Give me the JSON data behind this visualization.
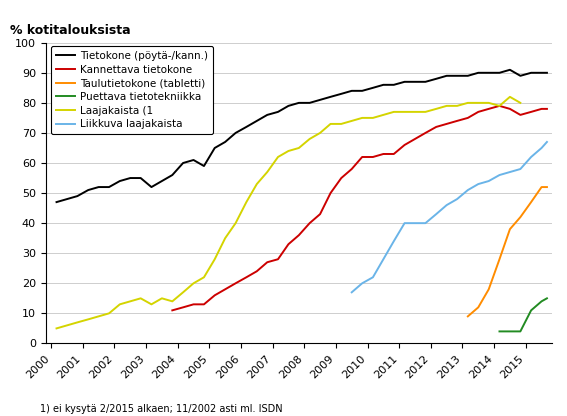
{
  "ylabel_text": "% kotitalouksista",
  "footnote": "1) ei kysytä 2/2015 alkaen; 11/2002 asti ml. ISDN",
  "ylim": [
    0,
    100
  ],
  "yticks": [
    0,
    10,
    20,
    30,
    40,
    50,
    60,
    70,
    80,
    90,
    100
  ],
  "xtick_labels": [
    "2000",
    "2001",
    "2002",
    "2003",
    "2004",
    "2005",
    "2006",
    "2007",
    "2008",
    "2009",
    "2010",
    "2011",
    "2012",
    "2013",
    "2014",
    "2015"
  ],
  "series": {
    "Tietokone (pöytä-/kann.)": {
      "color": "#000000",
      "data": [
        [
          2000.17,
          47
        ],
        [
          2000.5,
          48
        ],
        [
          2000.83,
          49
        ],
        [
          2001.17,
          51
        ],
        [
          2001.5,
          52
        ],
        [
          2001.83,
          52
        ],
        [
          2002.17,
          54
        ],
        [
          2002.5,
          55
        ],
        [
          2002.83,
          55
        ],
        [
          2003.17,
          52
        ],
        [
          2003.5,
          54
        ],
        [
          2003.83,
          56
        ],
        [
          2004.17,
          60
        ],
        [
          2004.5,
          61
        ],
        [
          2004.83,
          59
        ],
        [
          2005.17,
          65
        ],
        [
          2005.5,
          67
        ],
        [
          2005.83,
          70
        ],
        [
          2006.17,
          72
        ],
        [
          2006.5,
          74
        ],
        [
          2006.83,
          76
        ],
        [
          2007.17,
          77
        ],
        [
          2007.5,
          79
        ],
        [
          2007.83,
          80
        ],
        [
          2008.17,
          80
        ],
        [
          2008.5,
          81
        ],
        [
          2008.83,
          82
        ],
        [
          2009.17,
          83
        ],
        [
          2009.5,
          84
        ],
        [
          2009.83,
          84
        ],
        [
          2010.17,
          85
        ],
        [
          2010.5,
          86
        ],
        [
          2010.83,
          86
        ],
        [
          2011.17,
          87
        ],
        [
          2011.5,
          87
        ],
        [
          2011.83,
          87
        ],
        [
          2012.17,
          88
        ],
        [
          2012.5,
          89
        ],
        [
          2012.83,
          89
        ],
        [
          2013.17,
          89
        ],
        [
          2013.5,
          90
        ],
        [
          2013.83,
          90
        ],
        [
          2014.17,
          90
        ],
        [
          2014.5,
          91
        ],
        [
          2014.83,
          89
        ],
        [
          2015.17,
          90
        ],
        [
          2015.5,
          90
        ],
        [
          2015.67,
          90
        ]
      ]
    },
    "Kannettava tietokone": {
      "color": "#cc0000",
      "data": [
        [
          2003.83,
          11
        ],
        [
          2004.17,
          12
        ],
        [
          2004.5,
          13
        ],
        [
          2004.83,
          13
        ],
        [
          2005.17,
          16
        ],
        [
          2005.5,
          18
        ],
        [
          2005.83,
          20
        ],
        [
          2006.17,
          22
        ],
        [
          2006.5,
          24
        ],
        [
          2006.83,
          27
        ],
        [
          2007.17,
          28
        ],
        [
          2007.5,
          33
        ],
        [
          2007.83,
          36
        ],
        [
          2008.17,
          40
        ],
        [
          2008.5,
          43
        ],
        [
          2008.83,
          50
        ],
        [
          2009.17,
          55
        ],
        [
          2009.5,
          58
        ],
        [
          2009.83,
          62
        ],
        [
          2010.17,
          62
        ],
        [
          2010.5,
          63
        ],
        [
          2010.83,
          63
        ],
        [
          2011.17,
          66
        ],
        [
          2011.5,
          68
        ],
        [
          2011.83,
          70
        ],
        [
          2012.17,
          72
        ],
        [
          2012.5,
          73
        ],
        [
          2012.83,
          74
        ],
        [
          2013.17,
          75
        ],
        [
          2013.5,
          77
        ],
        [
          2013.83,
          78
        ],
        [
          2014.17,
          79
        ],
        [
          2014.5,
          78
        ],
        [
          2014.83,
          76
        ],
        [
          2015.17,
          77
        ],
        [
          2015.5,
          78
        ],
        [
          2015.67,
          78
        ]
      ]
    },
    "Taulutietokone (tabletti)": {
      "color": "#ff8c00",
      "data": [
        [
          2013.17,
          9
        ],
        [
          2013.5,
          12
        ],
        [
          2013.83,
          18
        ],
        [
          2014.17,
          28
        ],
        [
          2014.5,
          38
        ],
        [
          2014.83,
          42
        ],
        [
          2015.17,
          47
        ],
        [
          2015.5,
          52
        ],
        [
          2015.67,
          52
        ]
      ]
    },
    "Puettava tietotekniikka": {
      "color": "#228b22",
      "data": [
        [
          2014.17,
          4
        ],
        [
          2014.5,
          4
        ],
        [
          2014.83,
          4
        ],
        [
          2015.17,
          11
        ],
        [
          2015.5,
          14
        ],
        [
          2015.67,
          15
        ]
      ]
    },
    "Laajakaista (1": {
      "color": "#d4d400",
      "data": [
        [
          2000.17,
          5
        ],
        [
          2000.5,
          6
        ],
        [
          2000.83,
          7
        ],
        [
          2001.17,
          8
        ],
        [
          2001.5,
          9
        ],
        [
          2001.83,
          10
        ],
        [
          2002.17,
          13
        ],
        [
          2002.5,
          14
        ],
        [
          2002.83,
          15
        ],
        [
          2003.17,
          13
        ],
        [
          2003.5,
          15
        ],
        [
          2003.83,
          14
        ],
        [
          2004.17,
          17
        ],
        [
          2004.5,
          20
        ],
        [
          2004.83,
          22
        ],
        [
          2005.17,
          28
        ],
        [
          2005.5,
          35
        ],
        [
          2005.83,
          40
        ],
        [
          2006.17,
          47
        ],
        [
          2006.5,
          53
        ],
        [
          2006.83,
          57
        ],
        [
          2007.17,
          62
        ],
        [
          2007.5,
          64
        ],
        [
          2007.83,
          65
        ],
        [
          2008.17,
          68
        ],
        [
          2008.5,
          70
        ],
        [
          2008.83,
          73
        ],
        [
          2009.17,
          73
        ],
        [
          2009.5,
          74
        ],
        [
          2009.83,
          75
        ],
        [
          2010.17,
          75
        ],
        [
          2010.5,
          76
        ],
        [
          2010.83,
          77
        ],
        [
          2011.17,
          77
        ],
        [
          2011.5,
          77
        ],
        [
          2011.83,
          77
        ],
        [
          2012.17,
          78
        ],
        [
          2012.5,
          79
        ],
        [
          2012.83,
          79
        ],
        [
          2013.17,
          80
        ],
        [
          2013.5,
          80
        ],
        [
          2013.83,
          80
        ],
        [
          2014.17,
          79
        ],
        [
          2014.5,
          82
        ],
        [
          2014.83,
          80
        ]
      ]
    },
    "Liikkuva laajakaista": {
      "color": "#6ab4e8",
      "data": [
        [
          2009.5,
          17
        ],
        [
          2009.83,
          20
        ],
        [
          2010.17,
          22
        ],
        [
          2010.5,
          28
        ],
        [
          2010.83,
          34
        ],
        [
          2011.17,
          40
        ],
        [
          2011.5,
          40
        ],
        [
          2011.83,
          40
        ],
        [
          2012.17,
          43
        ],
        [
          2012.5,
          46
        ],
        [
          2012.83,
          48
        ],
        [
          2013.17,
          51
        ],
        [
          2013.5,
          53
        ],
        [
          2013.83,
          54
        ],
        [
          2014.17,
          56
        ],
        [
          2014.5,
          57
        ],
        [
          2014.83,
          58
        ],
        [
          2015.17,
          62
        ],
        [
          2015.5,
          65
        ],
        [
          2015.67,
          67
        ]
      ]
    }
  }
}
